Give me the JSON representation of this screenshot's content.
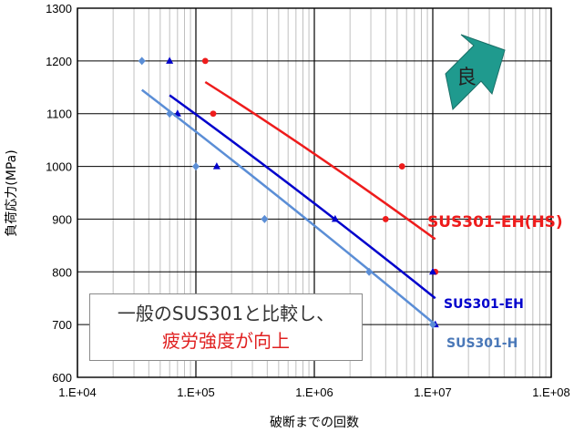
{
  "chart_data": {
    "type": "scatter",
    "title": "",
    "xlabel": "破断までの回数",
    "ylabel": "負荷応力(MPa)",
    "xscale": "log",
    "xlim": [
      10000,
      100000000
    ],
    "ylim": [
      600,
      1300
    ],
    "x_ticks": [
      "1.E+04",
      "1.E+05",
      "1.E+06",
      "1.E+07",
      "1.E+08"
    ],
    "y_ticks": [
      "600",
      "700",
      "800",
      "900",
      "1000",
      "1100",
      "1200",
      "1300"
    ],
    "grid": true,
    "series": [
      {
        "name": "SUS301-EH(HS)",
        "color": "#ee1c1c",
        "marker": "circle",
        "points": [
          [
            120000,
            1200
          ],
          [
            140000,
            1100
          ],
          [
            5500000,
            1000
          ],
          [
            4000000,
            900
          ],
          [
            10500000,
            800
          ]
        ],
        "trend": [
          [
            120000,
            1160
          ],
          [
            10500000,
            862
          ]
        ]
      },
      {
        "name": "SUS301-EH",
        "color": "#0000cc",
        "marker": "triangle",
        "points": [
          [
            60000,
            1200
          ],
          [
            70000,
            1100
          ],
          [
            150000,
            1000
          ],
          [
            1500000,
            900
          ],
          [
            10000000,
            800
          ],
          [
            10500000,
            700
          ]
        ],
        "trend": [
          [
            60000,
            1135
          ],
          [
            10500000,
            750
          ]
        ]
      },
      {
        "name": "SUS301-H",
        "color": "#5b8ed6",
        "marker": "diamond",
        "points": [
          [
            35000,
            1200
          ],
          [
            60000,
            1100
          ],
          [
            100000,
            1000
          ],
          [
            380000,
            900
          ],
          [
            2900000,
            800
          ],
          [
            10000000,
            700
          ]
        ],
        "trend": [
          [
            35000,
            1145
          ],
          [
            10500000,
            700
          ]
        ]
      }
    ],
    "annotations": {
      "note_line1": "一般のSUS301と比較し、",
      "note_line2": "疲労強度が向上",
      "badge": "良"
    }
  }
}
